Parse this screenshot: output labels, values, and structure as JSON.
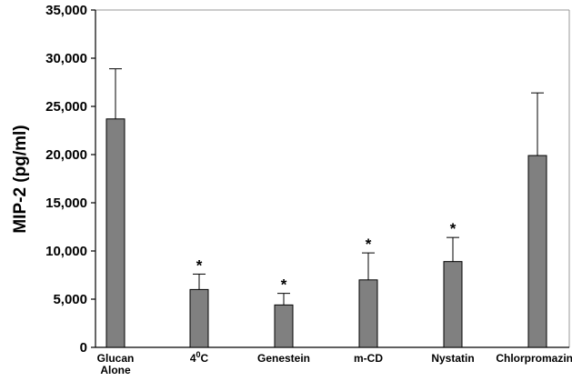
{
  "chart_data": {
    "type": "bar",
    "title": "",
    "xlabel": "",
    "ylabel": "MIP-2 (pg/ml)",
    "ylim": [
      0,
      35000
    ],
    "yticks": [
      "0",
      "5,000",
      "10,000",
      "15,000",
      "20,000",
      "25,000",
      "30,000",
      "35,000"
    ],
    "ytick_values": [
      0,
      5000,
      10000,
      15000,
      20000,
      25000,
      30000,
      35000
    ],
    "categories": [
      [
        "Glucan",
        "Alone"
      ],
      [
        "4",
        "0",
        "C"
      ],
      [
        "Genestein"
      ],
      [
        "m-CD"
      ],
      [
        "Nystatin"
      ],
      [
        "Chlorpromazine"
      ]
    ],
    "category_names": [
      "Glucan Alone",
      "40C",
      "Genestein",
      "m-CD",
      "Nystatin",
      "Chlorpromazine"
    ],
    "values": [
      23700,
      6000,
      4400,
      7000,
      8900,
      19900
    ],
    "error_upper": [
      5200,
      1600,
      1200,
      2800,
      2500,
      6500
    ],
    "significance": [
      "",
      "*",
      "*",
      "*",
      "*",
      ""
    ],
    "grid": false,
    "legend": "none",
    "colors": {
      "bar_fill": "#808080",
      "bar_stroke": "#000000",
      "axis": "#000000",
      "frame": "#999999"
    }
  }
}
